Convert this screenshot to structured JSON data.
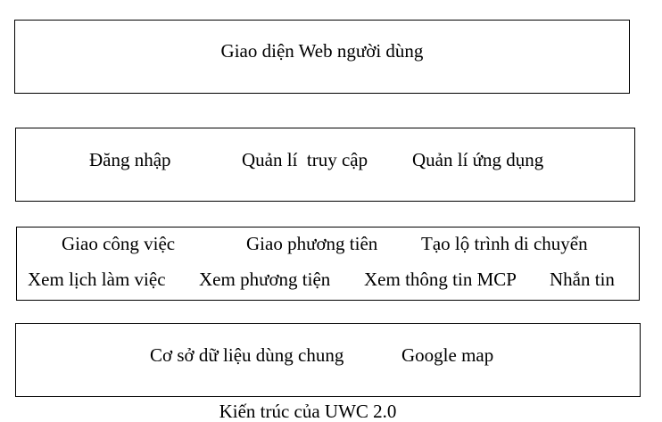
{
  "layers": {
    "web_ui": {
      "label": "Giao diện Web người dùng"
    },
    "auth": {
      "items": [
        "Đăng nhập",
        "Quản lí  truy cập",
        "Quản lí ứng dụng"
      ]
    },
    "functions": {
      "row1": [
        "Giao công việc",
        "Giao phương tiên",
        "Tạo lộ trình di chuyển"
      ],
      "row2": [
        "Xem lịch làm việc",
        "Xem phương tiện",
        "Xem thông tin MCP",
        "Nhắn tin"
      ]
    },
    "data": {
      "items": [
        "Cơ sở dữ liệu dùng chung",
        "Google map"
      ]
    }
  },
  "caption": "Kiến trúc của UWC 2.0"
}
